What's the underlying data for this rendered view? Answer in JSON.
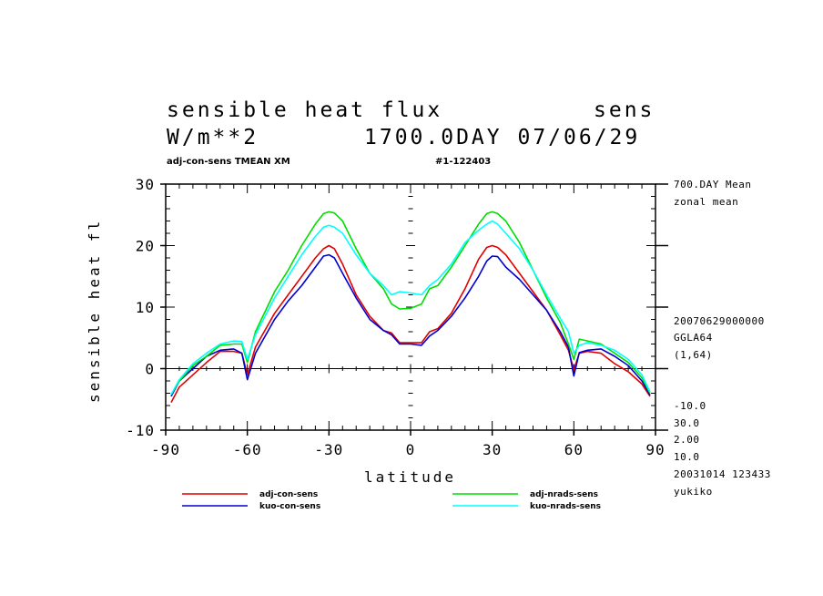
{
  "header": {
    "title_left": "sensible heat flux",
    "title_right": "sens",
    "units": "W/m**2",
    "time": "1700.0DAY 07/06/29",
    "subtitle_left": "adj-con-sens TMEAN XM",
    "subtitle_right": "#1-122403"
  },
  "side_info": {
    "mean_label": "700.DAY Mean",
    "mean_type": "zonal mean",
    "date_code": "20070629000000",
    "model": "GGLA64",
    "grid": "(1,64)",
    "contour_min": "-10.0",
    "contour_max": "30.0",
    "contour_step": "2.00",
    "contour_other": "10.0",
    "run_stamp": "20031014 123433",
    "user": "yukiko"
  },
  "colors": {
    "adj_con": "#e00000",
    "kuo_con": "#0000d0",
    "adj_nrads": "#00dd00",
    "kuo_nrads": "#00ffff",
    "axis": "#000000"
  },
  "chart_data": {
    "type": "line",
    "xlabel": "latitude",
    "ylabel": "sensible heat fl",
    "xlim": [
      -90,
      90
    ],
    "ylim": [
      -10,
      30
    ],
    "xticks": [
      -90,
      -60,
      -30,
      0,
      30,
      60,
      90
    ],
    "xtick_labels": [
      "-90",
      "-60",
      "-30",
      "0",
      "30",
      "60",
      "90"
    ],
    "yticks": [
      -10,
      0,
      10,
      20,
      30
    ],
    "ytick_labels": [
      "-10",
      "0",
      "10",
      "20",
      "30"
    ],
    "x": [
      -88,
      -85,
      -80,
      -75,
      -70,
      -65,
      -62,
      -60,
      -57,
      -50,
      -45,
      -40,
      -35,
      -32,
      -30,
      -28,
      -25,
      -20,
      -15,
      -10,
      -7,
      -4,
      0,
      4,
      7,
      10,
      15,
      20,
      25,
      28,
      30,
      32,
      35,
      40,
      45,
      50,
      55,
      58,
      60,
      62,
      65,
      70,
      75,
      80,
      85,
      88
    ],
    "series": [
      {
        "name": "adj-con-sens",
        "color_key": "adj_con",
        "values": [
          -5.5,
          -3,
          -1,
          1,
          2.8,
          2.8,
          2.5,
          -1,
          3.5,
          9,
          12,
          15,
          18,
          19.5,
          20,
          19.5,
          17,
          12,
          8.5,
          6.2,
          5.8,
          4.2,
          4.2,
          4.2,
          6,
          6.5,
          9,
          13,
          17.8,
          19.7,
          20,
          19.7,
          18.5,
          15.5,
          12.5,
          9.5,
          5.5,
          3,
          -0.2,
          2.5,
          2.8,
          2.5,
          0.8,
          -0.5,
          -2.5,
          -4.5
        ]
      },
      {
        "name": "kuo-con-sens",
        "color_key": "kuo_con",
        "values": [
          -4.5,
          -2,
          0,
          2,
          3,
          3.2,
          2.5,
          -1.8,
          2.5,
          8,
          11,
          13.5,
          16.5,
          18.3,
          18.5,
          18,
          15.5,
          11.5,
          8,
          6.2,
          5.5,
          4,
          4,
          3.8,
          5.3,
          6.2,
          8.5,
          11.5,
          15,
          17.5,
          18.3,
          18.2,
          16.5,
          14.5,
          12,
          9.5,
          6,
          3.5,
          -1.2,
          2.6,
          3,
          3.2,
          2,
          0.5,
          -2,
          -4.3
        ]
      },
      {
        "name": "adj-nrads-sens",
        "color_key": "adj_nrads",
        "values": [
          -4.2,
          -2,
          0.5,
          2,
          3.8,
          4,
          4,
          1,
          6,
          12.5,
          16,
          20,
          23.5,
          25.2,
          25.5,
          25.3,
          24,
          19.5,
          15.5,
          13,
          10.5,
          9.7,
          9.8,
          10.5,
          13,
          13.5,
          16.5,
          20,
          23.5,
          25.2,
          25.5,
          25.2,
          24,
          20.5,
          16,
          11.5,
          7.5,
          4,
          1.5,
          4.8,
          4.5,
          4,
          2.5,
          1,
          -1.5,
          -4
        ]
      },
      {
        "name": "kuo-nrads-sens",
        "color_key": "kuo_nrads",
        "values": [
          -4.2,
          -1.8,
          0.8,
          2.5,
          4,
          4.5,
          4.4,
          1.5,
          5.5,
          11.5,
          15,
          18.5,
          21.5,
          23,
          23.3,
          23,
          22,
          18.5,
          15.5,
          13.5,
          12,
          12.5,
          12.3,
          12,
          13.5,
          14.5,
          17,
          20.5,
          22.5,
          23.5,
          24,
          23.5,
          22,
          19.5,
          16,
          12,
          8.2,
          6,
          2.5,
          3.8,
          4.2,
          3.8,
          3,
          1.5,
          -1,
          -3.8
        ]
      }
    ]
  },
  "legend": {
    "items": [
      {
        "label": "adj-con-sens",
        "color_key": "adj_con"
      },
      {
        "label": "kuo-con-sens",
        "color_key": "kuo_con"
      },
      {
        "label": "adj-nrads-sens",
        "color_key": "adj_nrads"
      },
      {
        "label": "kuo-nrads-sens",
        "color_key": "kuo_nrads"
      }
    ]
  }
}
